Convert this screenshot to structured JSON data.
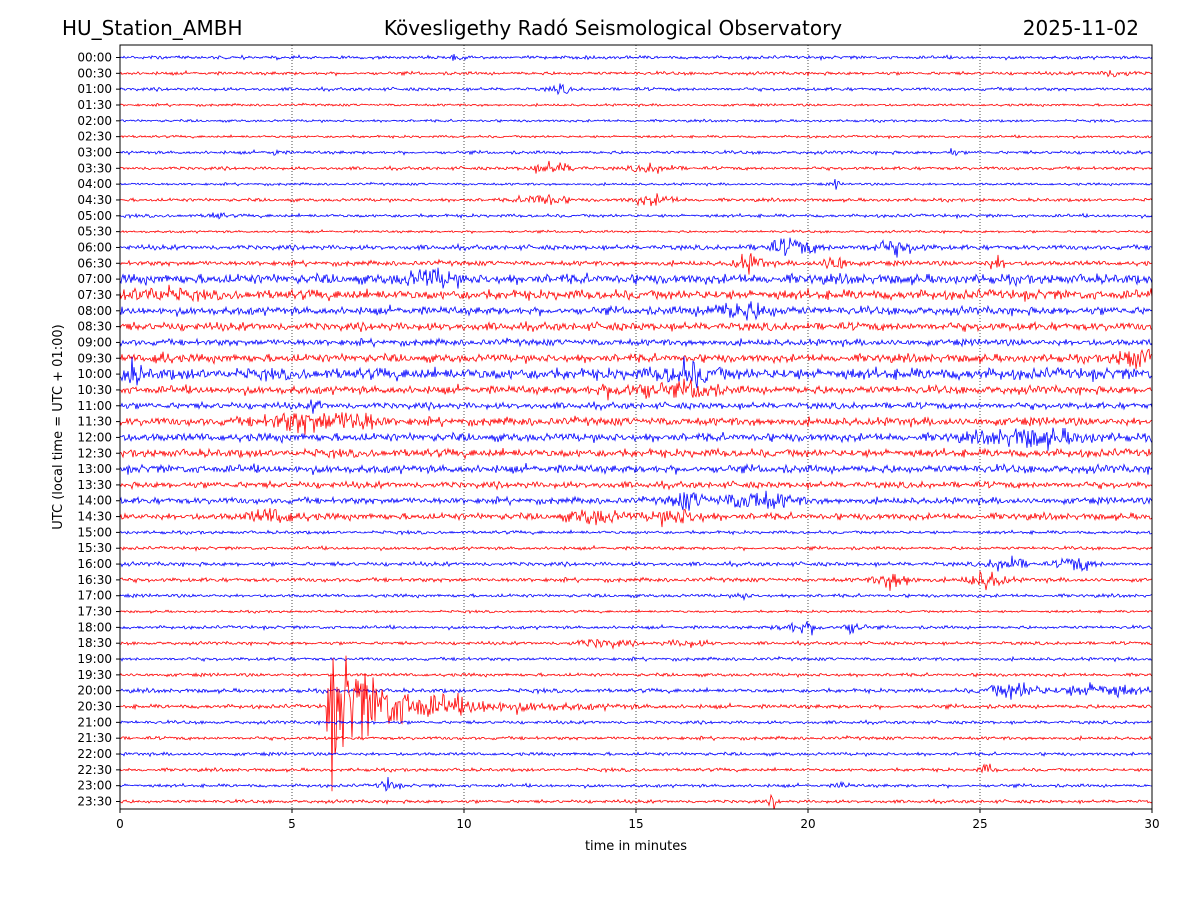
{
  "header": {
    "station": "HU_Station_AMBH",
    "observatory": "Kövesligethy Radó Seismological Observatory",
    "date": "2025-11-02"
  },
  "chart_data": {
    "type": "line",
    "title": "Kövesligethy Radó Seismological Observatory",
    "xlabel": "time in minutes",
    "ylabel": "UTC (local time = UTC + 01:00)",
    "xlim": [
      0,
      30
    ],
    "x_ticks": [
      "0",
      "5",
      "10",
      "15",
      "20",
      "25",
      "30"
    ],
    "x_tick_values": [
      0,
      5,
      10,
      15,
      20,
      25,
      30
    ],
    "grid": "vertical dotted at each 5 minutes",
    "trace_colors": [
      "#0000ff",
      "#ff0000"
    ],
    "row_labels": [
      "00:00",
      "00:30",
      "01:00",
      "01:30",
      "02:00",
      "02:30",
      "03:00",
      "03:30",
      "04:00",
      "04:30",
      "05:00",
      "05:30",
      "06:00",
      "06:30",
      "07:00",
      "07:30",
      "08:00",
      "08:30",
      "09:00",
      "09:30",
      "10:00",
      "10:30",
      "11:00",
      "11:30",
      "12:00",
      "12:30",
      "13:00",
      "13:30",
      "14:00",
      "14:30",
      "15:00",
      "15:30",
      "16:00",
      "16:30",
      "17:00",
      "17:30",
      "18:00",
      "18:30",
      "19:00",
      "19:30",
      "20:00",
      "20:30",
      "21:00",
      "21:30",
      "22:00",
      "22:30",
      "23:00",
      "23:30"
    ],
    "noise_level": [
      2,
      2,
      2,
      1.5,
      1.5,
      1.5,
      2,
      2,
      1.5,
      2,
      2,
      1.5,
      3,
      3,
      6,
      6,
      5,
      5,
      4,
      5,
      7,
      5,
      4,
      5,
      5,
      5,
      5,
      4,
      4,
      4,
      2,
      2,
      2.5,
      2.5,
      2,
      1.5,
      2,
      2,
      2,
      2,
      2.5,
      2.5,
      2,
      2,
      2,
      2,
      2,
      2
    ],
    "events": [
      {
        "row": 0,
        "t": 9.8,
        "amp": 4,
        "dur": 0.3
      },
      {
        "row": 1,
        "t": 28.9,
        "amp": 4,
        "dur": 1.0
      },
      {
        "row": 2,
        "t": 12.8,
        "amp": 5,
        "dur": 0.6
      },
      {
        "row": 6,
        "t": 24.2,
        "amp": 7,
        "dur": 0.2
      },
      {
        "row": 6,
        "t": 4.5,
        "amp": 4,
        "dur": 0.3
      },
      {
        "row": 7,
        "t": 12.6,
        "amp": 7,
        "dur": 1.2
      },
      {
        "row": 7,
        "t": 15.5,
        "amp": 5,
        "dur": 1.2
      },
      {
        "row": 8,
        "t": 20.8,
        "amp": 6,
        "dur": 0.2
      },
      {
        "row": 9,
        "t": 12.3,
        "amp": 8,
        "dur": 1.2
      },
      {
        "row": 9,
        "t": 15.5,
        "amp": 6,
        "dur": 1.2
      },
      {
        "row": 10,
        "t": 2.8,
        "amp": 5,
        "dur": 0.4
      },
      {
        "row": 12,
        "t": 19.5,
        "amp": 9,
        "dur": 1.5
      },
      {
        "row": 12,
        "t": 22.5,
        "amp": 7,
        "dur": 1.5
      },
      {
        "row": 13,
        "t": 18.3,
        "amp": 10,
        "dur": 0.8
      },
      {
        "row": 13,
        "t": 20.8,
        "amp": 10,
        "dur": 0.7
      },
      {
        "row": 13,
        "t": 25.5,
        "amp": 8,
        "dur": 0.5
      },
      {
        "row": 14,
        "t": 9.0,
        "amp": 9,
        "dur": 1.5
      },
      {
        "row": 15,
        "t": 1.0,
        "amp": 8,
        "dur": 1.5
      },
      {
        "row": 16,
        "t": 18.0,
        "amp": 9,
        "dur": 2.0
      },
      {
        "row": 19,
        "t": 29.5,
        "amp": 12,
        "dur": 1.0
      },
      {
        "row": 19,
        "t": 1.2,
        "amp": 9,
        "dur": 0.4
      },
      {
        "row": 20,
        "t": 16.5,
        "amp": 12,
        "dur": 1.5
      },
      {
        "row": 20,
        "t": 0.3,
        "amp": 12,
        "dur": 0.6
      },
      {
        "row": 21,
        "t": 15.0,
        "amp": 9,
        "dur": 2.0
      },
      {
        "row": 21,
        "t": 16.8,
        "amp": 10,
        "dur": 1.0
      },
      {
        "row": 22,
        "t": 5.7,
        "amp": 8,
        "dur": 0.3
      },
      {
        "row": 23,
        "t": 5.5,
        "amp": 11,
        "dur": 2.5
      },
      {
        "row": 23,
        "t": 7.0,
        "amp": 9,
        "dur": 1.0
      },
      {
        "row": 24,
        "t": 26.5,
        "amp": 9,
        "dur": 3.0
      },
      {
        "row": 28,
        "t": 18.5,
        "amp": 10,
        "dur": 2.0
      },
      {
        "row": 28,
        "t": 16.5,
        "amp": 9,
        "dur": 1.0
      },
      {
        "row": 29,
        "t": 4.5,
        "amp": 8,
        "dur": 1.5
      },
      {
        "row": 29,
        "t": 13.8,
        "amp": 8,
        "dur": 1.5
      },
      {
        "row": 29,
        "t": 16.2,
        "amp": 8,
        "dur": 1.5
      },
      {
        "row": 32,
        "t": 25.8,
        "amp": 9,
        "dur": 1.0
      },
      {
        "row": 32,
        "t": 27.8,
        "amp": 8,
        "dur": 1.0
      },
      {
        "row": 33,
        "t": 22.5,
        "amp": 11,
        "dur": 1.0
      },
      {
        "row": 33,
        "t": 25.2,
        "amp": 11,
        "dur": 1.0
      },
      {
        "row": 34,
        "t": 18.1,
        "amp": 6,
        "dur": 0.3
      },
      {
        "row": 36,
        "t": 19.8,
        "amp": 7,
        "dur": 1.2
      },
      {
        "row": 36,
        "t": 21.3,
        "amp": 8,
        "dur": 0.6
      },
      {
        "row": 37,
        "t": 14.0,
        "amp": 5,
        "dur": 1.5
      },
      {
        "row": 37,
        "t": 16.5,
        "amp": 4,
        "dur": 1.2
      },
      {
        "row": 40,
        "t": 26.0,
        "amp": 10,
        "dur": 1.5
      },
      {
        "row": 40,
        "t": 28.5,
        "amp": 9,
        "dur": 2.0
      },
      {
        "row": 45,
        "t": 25.2,
        "amp": 6,
        "dur": 0.4
      },
      {
        "row": 46,
        "t": 7.8,
        "amp": 8,
        "dur": 0.5
      },
      {
        "row": 46,
        "t": 21.0,
        "amp": 6,
        "dur": 0.3
      },
      {
        "row": 47,
        "t": 19.0,
        "amp": 10,
        "dur": 0.2
      }
    ],
    "earthquake": {
      "row": 41,
      "t_start": 6.0,
      "peak_amp": 75,
      "decay_minutes": 3.5,
      "coda_minutes": 10
    }
  }
}
